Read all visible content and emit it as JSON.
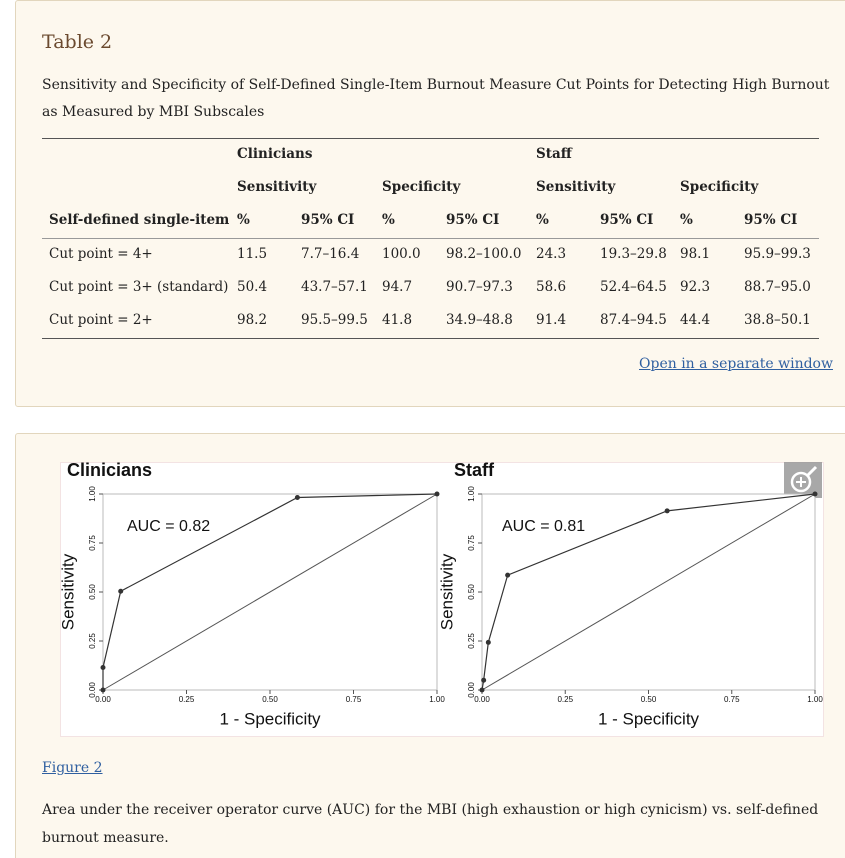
{
  "table": {
    "label": "Table 2",
    "title": "Sensitivity and Specificity of Self-Defined Single-Item Burnout Measure Cut Points for Detecting High Burnout as Measured by MBI Subscales",
    "groups": [
      "Clinicians",
      "Staff"
    ],
    "subgroups": [
      "Sensitivity",
      "Specificity",
      "Sensitivity",
      "Specificity"
    ],
    "columns": [
      "Self-defined single-item",
      "%",
      "95% CI",
      "%",
      "95% CI",
      "%",
      "95% CI",
      "%",
      "95% CI"
    ],
    "rows": [
      [
        "Cut point = 4+",
        "11.5",
        "7.7–16.4",
        "100.0",
        "98.2–100.0",
        "24.3",
        "19.3–29.8",
        "98.1",
        "95.9–99.3"
      ],
      [
        "Cut point = 3+ (standard)",
        "50.4",
        "43.7–57.1",
        "94.7",
        "90.7–97.3",
        "58.6",
        "52.4–64.5",
        "92.3",
        "88.7–95.0"
      ],
      [
        "Cut point = 2+",
        "98.2",
        "95.5–99.5",
        "41.8",
        "34.9–48.8",
        "91.4",
        "87.4–94.5",
        "44.4",
        "38.8–50.1"
      ]
    ],
    "link": "Open in a separate window"
  },
  "figure": {
    "label": "Figure 2",
    "caption": "Area under the receiver operator curve (AUC) for the MBI (high exhaustion or high cynicism) vs. self-defined burnout measure."
  },
  "chart_data": [
    {
      "type": "line",
      "title": "Clinicians",
      "annotation": "AUC = 0.82",
      "x_label": "1 - Specificity",
      "y_label": "Sensitivity",
      "color": "#333333",
      "x": [
        0,
        0,
        0.053,
        0.582,
        1
      ],
      "values": [
        0,
        0.115,
        0.504,
        0.982,
        1
      ],
      "xlim": [
        0,
        1
      ],
      "ylim": [
        0,
        1
      ],
      "xticks": [
        {
          "value": 0,
          "label": "0.00"
        },
        {
          "value": 0.25,
          "label": "0.25"
        },
        {
          "value": 0.5,
          "label": "0.50"
        },
        {
          "value": 0.75,
          "label": "0.75"
        },
        {
          "value": 1,
          "label": "1.00"
        }
      ],
      "yticks": [
        {
          "value": 0,
          "label": "0.00"
        },
        {
          "value": 0.25,
          "label": "0.25"
        },
        {
          "value": 0.5,
          "label": "0.50"
        },
        {
          "value": 0.75,
          "label": "0.75"
        },
        {
          "value": 1,
          "label": "1.00"
        }
      ]
    },
    {
      "type": "line",
      "title": "Staff",
      "annotation": "AUC = 0.81",
      "x_label": "1 - Specificity",
      "y_label": "Sensitivity",
      "color": "#333333",
      "x": [
        0,
        0.005,
        0.019,
        0.077,
        0.556,
        1
      ],
      "values": [
        0,
        0.05,
        0.243,
        0.586,
        0.914,
        1
      ],
      "xlim": [
        0,
        1
      ],
      "ylim": [
        0,
        1
      ],
      "xticks": [
        {
          "value": 0,
          "label": "0.00"
        },
        {
          "value": 0.25,
          "label": "0.25"
        },
        {
          "value": 0.5,
          "label": "0.50"
        },
        {
          "value": 0.75,
          "label": "0.75"
        },
        {
          "value": 1,
          "label": "1.00"
        }
      ],
      "yticks": [
        {
          "value": 0,
          "label": "0.00"
        },
        {
          "value": 0.25,
          "label": "0.25"
        },
        {
          "value": 0.5,
          "label": "0.50"
        },
        {
          "value": 0.75,
          "label": "0.75"
        },
        {
          "value": 1,
          "label": "1.00"
        }
      ]
    }
  ]
}
